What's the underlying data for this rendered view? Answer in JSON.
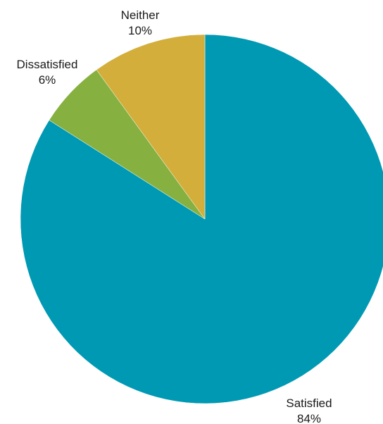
{
  "chart_data": {
    "type": "pie",
    "start_angle": "12 o'clock",
    "direction": "clockwise",
    "slices": [
      {
        "label": "Satisfied",
        "value": 84,
        "value_label": "84%",
        "color": "#0099B3"
      },
      {
        "label": "Dissatisfied",
        "value": 6,
        "value_label": "6%",
        "color": "#86B040"
      },
      {
        "label": "Neither",
        "value": 10,
        "value_label": "10%",
        "color": "#D3AE3B"
      }
    ]
  }
}
